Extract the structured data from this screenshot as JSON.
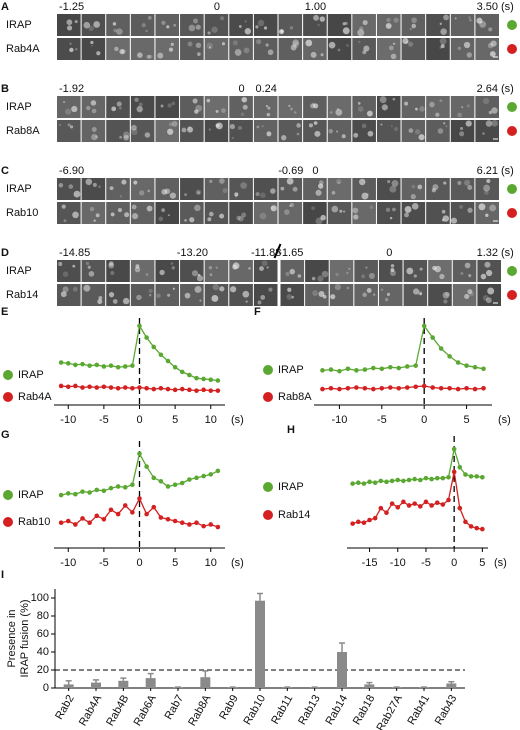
{
  "panels": [
    {
      "letter": "A",
      "times": [
        "-1.25",
        "0",
        "1.00",
        "3.50"
      ],
      "unit": "(s)",
      "rows": [
        {
          "name": "IRAP",
          "color": "#5aa832"
        },
        {
          "name": "Rab4A",
          "color": "#d42020"
        }
      ]
    },
    {
      "letter": "B",
      "times": [
        "-1.92",
        "0",
        "0.24",
        "2.64"
      ],
      "unit": "(s)",
      "rows": [
        {
          "name": "IRAP",
          "color": "#5aa832"
        },
        {
          "name": "Rab8A",
          "color": "#d42020"
        }
      ]
    },
    {
      "letter": "C",
      "times": [
        "-6.90",
        "-0.69",
        "0",
        "6.21"
      ],
      "unit": "(s)",
      "rows": [
        {
          "name": "IRAP",
          "color": "#5aa832"
        },
        {
          "name": "Rab10",
          "color": "#d42020"
        }
      ]
    },
    {
      "letter": "D",
      "times": [
        "-14.85",
        "-13.20",
        "-11.88",
        "-1.65",
        "0",
        "1.32"
      ],
      "unit": "(s)",
      "rows": [
        {
          "name": "IRAP",
          "color": "#5aa832"
        },
        {
          "name": "Rab14",
          "color": "#d42020"
        }
      ]
    }
  ],
  "chart_data": [
    {
      "type": "line",
      "letter": "E",
      "xunit": "(s)",
      "xlim": [
        -12,
        12
      ],
      "ylim": [
        0,
        100
      ],
      "xticks": [
        -10,
        -5,
        0,
        5,
        10
      ],
      "x": [
        -11,
        -10,
        -9,
        -8,
        -7,
        -6,
        -5,
        -4,
        -3,
        -2,
        -1,
        0,
        1,
        2,
        3,
        4,
        5,
        6,
        7,
        8,
        9,
        10,
        11
      ],
      "series": [
        {
          "name": "IRAP",
          "color": "#5aa832",
          "values": [
            48,
            47,
            45,
            46,
            44,
            45,
            43,
            44,
            42,
            43,
            44,
            95,
            80,
            68,
            58,
            50,
            42,
            36,
            32,
            28,
            27,
            26,
            25
          ]
        },
        {
          "name": "Rab4A",
          "color": "#d42020",
          "values": [
            18,
            17,
            18,
            16,
            17,
            16,
            17,
            16,
            15,
            16,
            15,
            16,
            15,
            14,
            15,
            14,
            13,
            14,
            13,
            12,
            13,
            12,
            12
          ]
        }
      ]
    },
    {
      "type": "line",
      "letter": "F",
      "xunit": "(s)",
      "xlim": [
        -13,
        8
      ],
      "ylim": [
        0,
        100
      ],
      "xticks": [
        -10,
        -5,
        0,
        5
      ],
      "x": [
        -12,
        -11,
        -10,
        -9,
        -8,
        -7,
        -6,
        -5,
        -4,
        -3,
        -2,
        -1,
        0,
        1,
        2,
        3,
        4,
        5,
        6,
        7
      ],
      "series": [
        {
          "name": "IRAP",
          "color": "#5aa832",
          "values": [
            38,
            39,
            37,
            40,
            38,
            39,
            41,
            40,
            42,
            41,
            43,
            44,
            95,
            80,
            66,
            56,
            48,
            44,
            42,
            40
          ]
        },
        {
          "name": "Rab8A",
          "color": "#d42020",
          "values": [
            14,
            15,
            14,
            15,
            16,
            15,
            14,
            15,
            16,
            15,
            16,
            17,
            18,
            16,
            15,
            15,
            14,
            15,
            14,
            15
          ]
        }
      ]
    },
    {
      "type": "line",
      "letter": "G",
      "xunit": "(s)",
      "xlim": [
        -12,
        12
      ],
      "ylim": [
        0,
        110
      ],
      "xticks": [
        -10,
        -5,
        0,
        5,
        10
      ],
      "x": [
        -11,
        -10,
        -9,
        -8,
        -7,
        -6,
        -5,
        -4,
        -3,
        -2,
        -1,
        0,
        1,
        2,
        3,
        4,
        5,
        6,
        7,
        8,
        9,
        10,
        11
      ],
      "series": [
        {
          "name": "IRAP",
          "color": "#5aa832",
          "values": [
            52,
            54,
            53,
            56,
            55,
            58,
            57,
            60,
            62,
            61,
            64,
            100,
            85,
            72,
            68,
            62,
            64,
            66,
            70,
            72,
            74,
            76,
            80
          ]
        },
        {
          "name": "Rab10",
          "color": "#d42020",
          "values": [
            20,
            22,
            18,
            25,
            20,
            28,
            24,
            35,
            30,
            40,
            32,
            48,
            30,
            38,
            26,
            24,
            22,
            20,
            18,
            20,
            16,
            18,
            15
          ]
        }
      ]
    },
    {
      "type": "line",
      "letter": "H",
      "xunit": "(s)",
      "xlim": [
        -19,
        6
      ],
      "ylim": [
        0,
        110
      ],
      "xticks": [
        -15,
        -10,
        -5,
        0,
        5
      ],
      "x": [
        -18,
        -17,
        -16,
        -15,
        -14,
        -13,
        -12,
        -11,
        -10,
        -9,
        -8,
        -7,
        -6,
        -5,
        -4,
        -3,
        -2,
        -1,
        0,
        1,
        2,
        3,
        4,
        5
      ],
      "series": [
        {
          "name": "IRAP",
          "color": "#5aa832",
          "values": [
            62,
            63,
            62,
            64,
            63,
            65,
            64,
            65,
            66,
            65,
            66,
            67,
            66,
            68,
            67,
            68,
            68,
            69,
            100,
            80,
            72,
            70,
            70,
            69
          ]
        },
        {
          "name": "Rab14",
          "color": "#d42020",
          "values": [
            18,
            20,
            19,
            22,
            24,
            35,
            30,
            40,
            36,
            42,
            38,
            40,
            37,
            42,
            38,
            41,
            39,
            44,
            75,
            35,
            20,
            15,
            13,
            12
          ]
        }
      ]
    },
    {
      "type": "bar",
      "letter": "I",
      "ylabel_lines": [
        "Presence in",
        "IRAP fusion (%)"
      ],
      "color": "#8a8a8a",
      "categories": [
        "Rab2",
        "Rab4A",
        "Rab4B",
        "Rab6A",
        "Rab7",
        "Rab8A",
        "Rab9",
        "Rab10",
        "Rab11",
        "Rab13",
        "Rab14",
        "Rab18",
        "Rab27A",
        "Rab41",
        "Rab43"
      ],
      "values": [
        4,
        6,
        8,
        11,
        1,
        12,
        1,
        97,
        1,
        1,
        40,
        4,
        1,
        1,
        5
      ],
      "errors": [
        4,
        3,
        3,
        5,
        0,
        7,
        0,
        8,
        0,
        0,
        10,
        2,
        0,
        0,
        2
      ],
      "threshold": 20,
      "ylim": [
        0,
        110
      ],
      "yticks": [
        0,
        20,
        40,
        60,
        80,
        100
      ]
    }
  ]
}
